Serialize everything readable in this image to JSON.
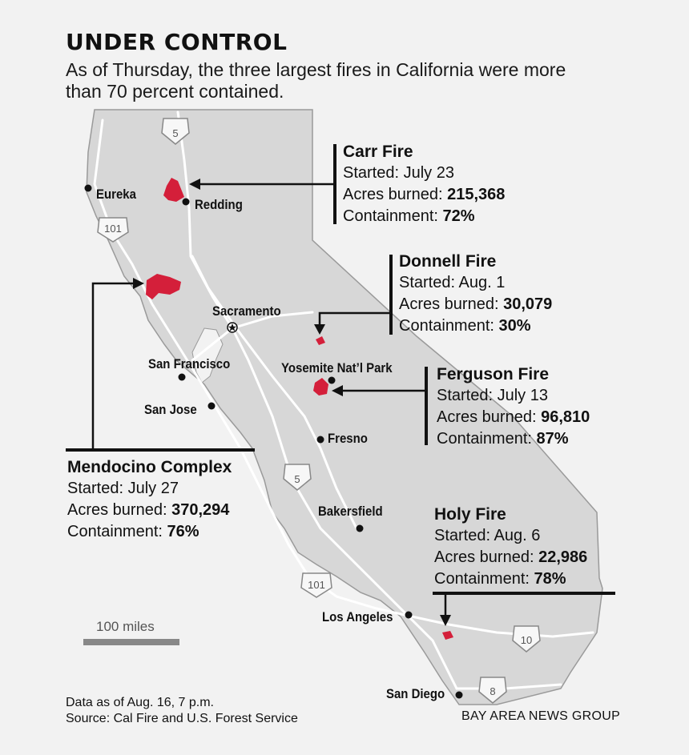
{
  "header": {
    "title": "UNDER CONTROL",
    "subtitle": "As of Thursday, the three largest fires in California were more than 70 percent contained."
  },
  "cities": {
    "eureka": "Eureka",
    "redding": "Redding",
    "sacramento": "Sacramento",
    "san_francisco": "San Francisco",
    "san_jose": "San Jose",
    "yosemite": "Yosemite Nat’l Park",
    "fresno": "Fresno",
    "bakersfield": "Bakersfield",
    "los_angeles": "Los Angeles",
    "san_diego": "San Diego"
  },
  "highways": {
    "i5_north": "5",
    "i5_south": "5",
    "us101_north": "101",
    "us101_south": "101",
    "i10": "10",
    "i8": "8"
  },
  "field_labels": {
    "started": "Started:",
    "acres": "Acres burned:",
    "containment": "Containment:"
  },
  "fires": {
    "carr": {
      "name": "Carr Fire",
      "started": "July 23",
      "acres": "215,368",
      "containment": "72%"
    },
    "donnell": {
      "name": "Donnell Fire",
      "started": "Aug. 1",
      "acres": "30,079",
      "containment": "30%"
    },
    "ferguson": {
      "name": "Ferguson Fire",
      "started": "July 13",
      "acres": "96,810",
      "containment": "87%"
    },
    "mendocino": {
      "name": "Mendocino Complex",
      "started": "July 27",
      "acres": "370,294",
      "containment": "76%"
    },
    "holy": {
      "name": "Holy Fire",
      "started": "Aug. 6",
      "acres": "22,986",
      "containment": "78%"
    }
  },
  "scale_bar": {
    "label": "100 miles"
  },
  "footer": {
    "note": "Data as of Aug. 16, 7 p.m.",
    "source": "Source: Cal Fire and U.S. Forest Service",
    "credit": "BAY AREA NEWS GROUP"
  },
  "colors": {
    "background": "#f2f2f2",
    "land": "#d7d7d7",
    "fire": "#d41f3a",
    "road": "#ffffff",
    "text": "#111111"
  }
}
